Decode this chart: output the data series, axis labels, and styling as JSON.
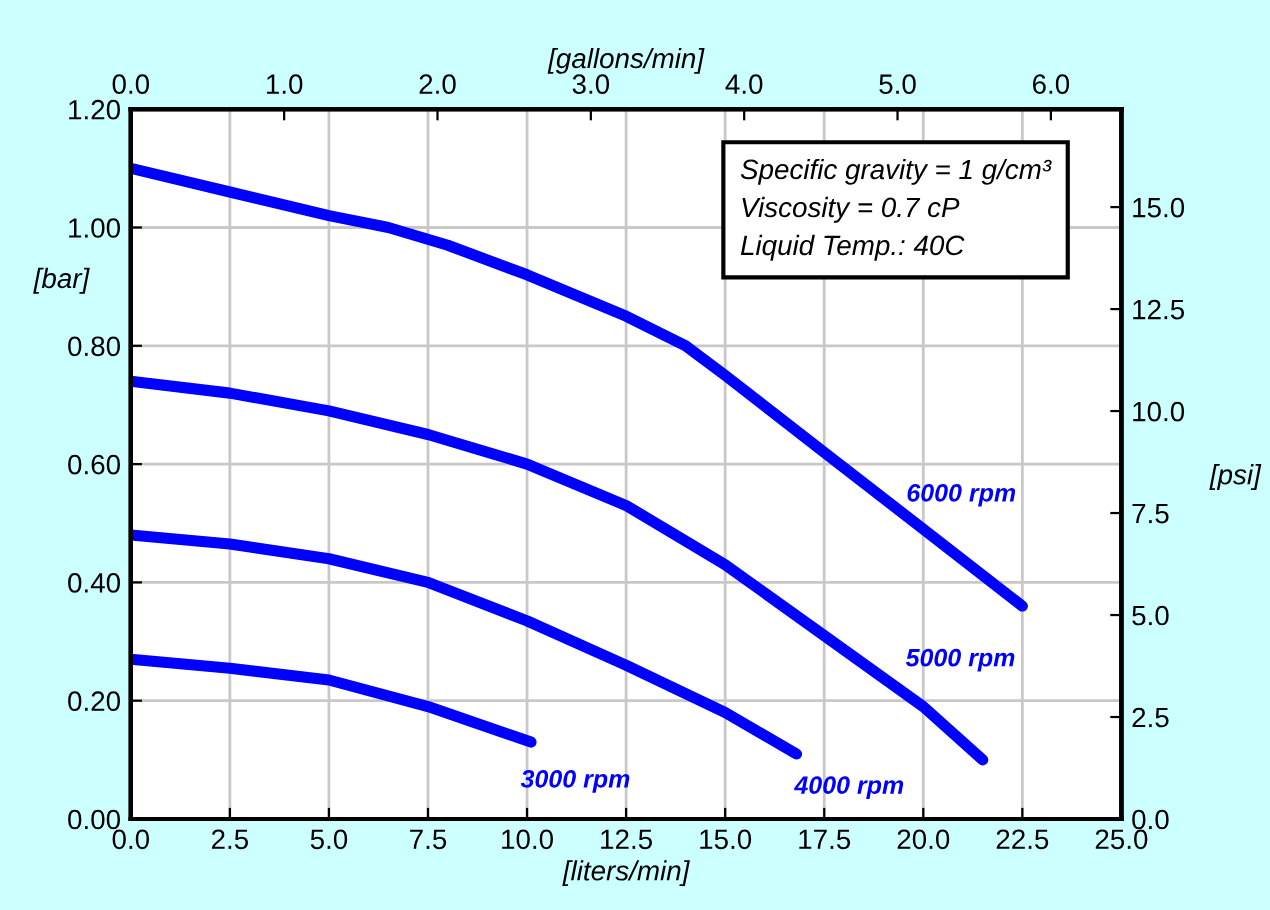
{
  "chart_data": {
    "type": "line",
    "xlabel": "[liters/min]",
    "ylabel": "[bar]",
    "x2label": "[gallons/min]",
    "y2label": "[psi]",
    "annotations": [
      "Specific gravity = 1 g/cm³\nViscosity = 0.7 cP\nLiquid Temp.: 40C"
    ],
    "xlim": [
      0,
      25
    ],
    "xticks": [
      {
        "value": 0,
        "label": "0.0"
      },
      {
        "value": 2.5,
        "label": "2.5"
      },
      {
        "value": 5,
        "label": "5.0"
      },
      {
        "value": 7.5,
        "label": "7.5"
      },
      {
        "value": 10,
        "label": "10.0"
      },
      {
        "value": 12.5,
        "label": "12.5"
      },
      {
        "value": 15,
        "label": "15.0"
      },
      {
        "value": 17.5,
        "label": "17.5"
      },
      {
        "value": 20,
        "label": "20.0"
      },
      {
        "value": 22.5,
        "label": "22.5"
      },
      {
        "value": 25,
        "label": "25.0"
      }
    ],
    "ylim": [
      0,
      1.2
    ],
    "yticks": [
      {
        "value": 0,
        "label": "0.00"
      },
      {
        "value": 0.2,
        "label": "0.20"
      },
      {
        "value": 0.4,
        "label": "0.40"
      },
      {
        "value": 0.6,
        "label": "0.60"
      },
      {
        "value": 0.8,
        "label": "0.80"
      },
      {
        "value": 1.0,
        "label": "1.00"
      },
      {
        "value": 1.2,
        "label": "1.20"
      }
    ],
    "x2lim": [
      0,
      6.46
    ],
    "x2ticks": [
      {
        "value": 0,
        "label": "0.0"
      },
      {
        "value": 1,
        "label": "1.0"
      },
      {
        "value": 2,
        "label": "2.0"
      },
      {
        "value": 3,
        "label": "3.0"
      },
      {
        "value": 4,
        "label": "4.0"
      },
      {
        "value": 5,
        "label": "5.0"
      },
      {
        "value": 6,
        "label": "6.0"
      }
    ],
    "y2lim": [
      0,
      17.4
    ],
    "y2ticks": [
      {
        "value": 0,
        "label": "0.0"
      },
      {
        "value": 2.5,
        "label": "2.5"
      },
      {
        "value": 5,
        "label": "5.0"
      },
      {
        "value": 7.5,
        "label": "7.5"
      },
      {
        "value": 10,
        "label": "10.0"
      },
      {
        "value": 12.5,
        "label": "12.5"
      },
      {
        "value": 15,
        "label": "15.0"
      }
    ],
    "grid": true,
    "legend": false,
    "marker": "none",
    "line_style": "solid",
    "series": [
      {
        "name": "6000 rpm",
        "color": "#0000ff",
        "x": [
          0,
          2.5,
          5,
          6.5,
          8,
          10,
          12.5,
          14,
          15,
          17.5,
          20,
          22.5
        ],
        "values": [
          1.1,
          1.06,
          1.02,
          1.0,
          0.97,
          0.92,
          0.85,
          0.8,
          0.75,
          0.62,
          0.49,
          0.36
        ]
      },
      {
        "name": "5000 rpm",
        "color": "#0000ff",
        "x": [
          0,
          2.5,
          5,
          7.5,
          10,
          12.5,
          14,
          15,
          17.5,
          20,
          21.5
        ],
        "values": [
          0.74,
          0.72,
          0.69,
          0.65,
          0.6,
          0.53,
          0.47,
          0.43,
          0.31,
          0.19,
          0.1
        ]
      },
      {
        "name": "4000 rpm",
        "color": "#0000ff",
        "x": [
          0,
          2.5,
          5,
          7.5,
          10,
          12.5,
          15,
          16.8
        ],
        "values": [
          0.48,
          0.465,
          0.44,
          0.4,
          0.335,
          0.26,
          0.18,
          0.11
        ]
      },
      {
        "name": "3000 rpm",
        "color": "#0000ff",
        "x": [
          0,
          2.5,
          5,
          7.5,
          10.1
        ],
        "values": [
          0.27,
          0.255,
          0.235,
          0.19,
          0.13
        ]
      }
    ]
  }
}
